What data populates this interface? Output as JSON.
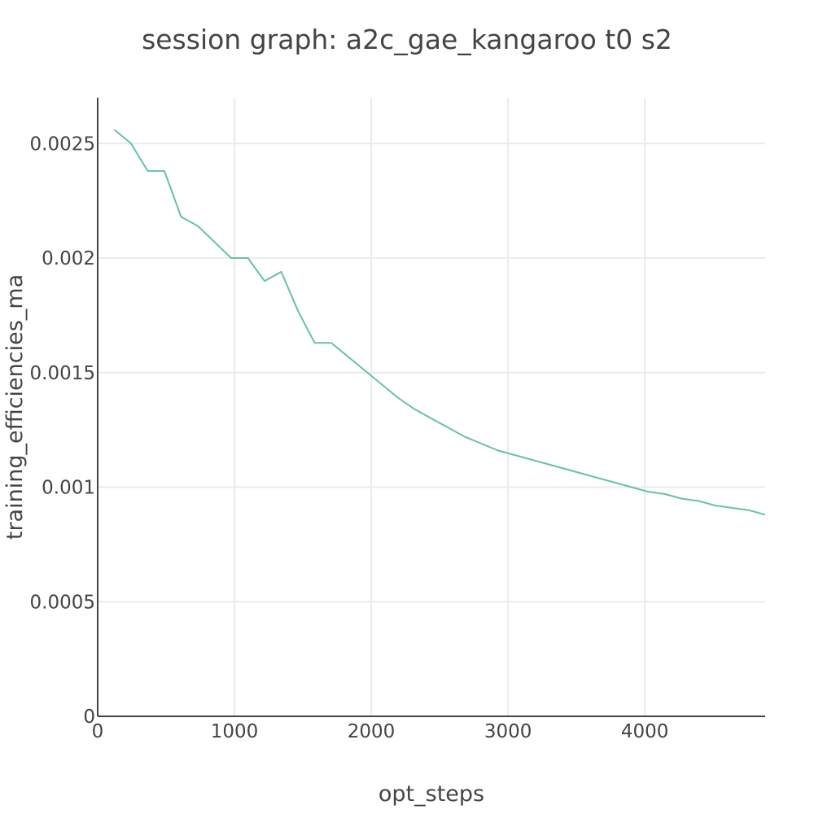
{
  "chart_data": {
    "type": "line",
    "title": "session graph: a2c_gae_kangaroo t0 s2",
    "xlabel": "opt_steps",
    "ylabel": "training_efficiencies_ma",
    "xlim": [
      0,
      4880
    ],
    "ylim": [
      0,
      0.0027
    ],
    "x_ticks": [
      0,
      1000,
      2000,
      3000,
      4000
    ],
    "x_tick_labels": [
      "0",
      "1000",
      "2000",
      "3000",
      "4000"
    ],
    "y_ticks": [
      0,
      0.0005,
      0.001,
      0.0015,
      0.002,
      0.0025
    ],
    "y_tick_labels": [
      "0",
      "0.0005",
      "0.001",
      "0.0015",
      "0.002",
      "0.0025"
    ],
    "grid": true,
    "color": "#66c2a5",
    "series": [
      {
        "x": [
          122,
          244,
          366,
          488,
          610,
          732,
          854,
          976,
          1098,
          1220,
          1342,
          1464,
          1586,
          1708,
          1830,
          1952,
          2074,
          2196,
          2318,
          2440,
          2562,
          2684,
          2806,
          2928,
          3050,
          3172,
          3294,
          3416,
          3538,
          3660,
          3782,
          3904,
          4026,
          4148,
          4270,
          4392,
          4514,
          4636,
          4758,
          4880
        ],
        "y": [
          0.00256,
          0.0025,
          0.00238,
          0.00238,
          0.00218,
          0.00214,
          0.00207,
          0.002,
          0.002,
          0.0019,
          0.00194,
          0.00177,
          0.00163,
          0.00163,
          0.00157,
          0.00151,
          0.00145,
          0.00139,
          0.00134,
          0.0013,
          0.00126,
          0.00122,
          0.00119,
          0.00116,
          0.00114,
          0.00112,
          0.0011,
          0.00108,
          0.00106,
          0.00104,
          0.00102,
          0.001,
          0.00098,
          0.00097,
          0.00095,
          0.00094,
          0.00092,
          0.00091,
          0.0009,
          0.00088
        ]
      }
    ]
  }
}
